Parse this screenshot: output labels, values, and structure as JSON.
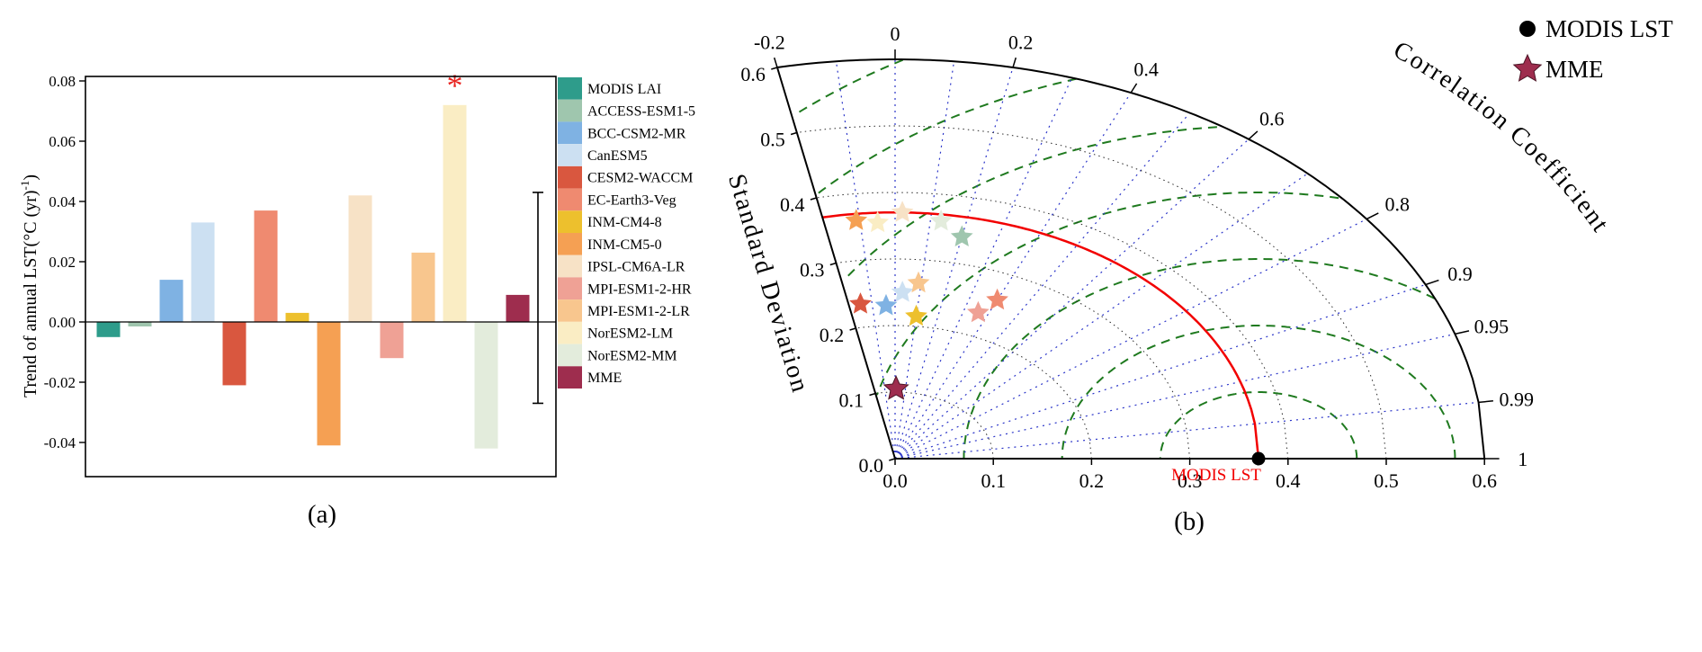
{
  "figure": {
    "caption_a": "(a)",
    "caption_b": "(b)"
  },
  "chart_data": [
    {
      "type": "bar",
      "panel": "a",
      "ylabel": "Trend of annual LST(°C (yr)⁻¹)",
      "ylabel_parts": [
        "Trend of annual LST(°C (yr)",
        "-1",
        ")"
      ],
      "ylim": [
        -0.052,
        0.082
      ],
      "yticks": [
        0.08,
        0.06,
        0.04,
        0.02,
        0,
        -0.02,
        -0.04
      ],
      "categories": [
        "MODIS LAI",
        "ACCESS-ESM1-5",
        "BCC-CSM2-MR",
        "CanESM5",
        "CESM2-WACCM",
        "EC-Earth3-Veg",
        "INM-CM4-8",
        "INM-CM5-0",
        "IPSL-CM6A-LR",
        "MPI-ESM1-2-HR",
        "MPI-ESM1-2-LR",
        "NorESM2-LM",
        "NorESM2-MM",
        "MME"
      ],
      "values": [
        -0.005,
        -0.0015,
        0.014,
        0.033,
        -0.021,
        0.037,
        0.003,
        -0.041,
        0.042,
        -0.012,
        0.023,
        0.072,
        -0.042,
        0.009
      ],
      "colors": [
        "#2e9c8b",
        "#9fc6ae",
        "#7fb2e3",
        "#cce0f2",
        "#d9573f",
        "#ef8a70",
        "#edc02d",
        "#f5a053",
        "#f7e2c6",
        "#efa195",
        "#f8c68e",
        "#faedc4",
        "#e3ecdc",
        "#9e2d4e"
      ],
      "significant_model": "NorESM2-LM",
      "significance_marker": "*",
      "significance_color": "#e82420",
      "error_bar": {
        "top": 0.043,
        "bottom": -0.027
      }
    },
    {
      "type": "taylor",
      "panel": "b",
      "axis_labels": {
        "radial": "Standard Deviation",
        "angular": "Correlation Coefficient"
      },
      "std_max": 0.6,
      "corr_min": -0.2,
      "std_ticks": [
        0,
        0.1,
        0.2,
        0.3,
        0.4,
        0.5,
        0.6
      ],
      "std_arcs": [
        0.1,
        0.2,
        0.3,
        0.4,
        0.5
      ],
      "corr_ticks": [
        {
          "v": -0.2,
          "label": "-0.2"
        },
        {
          "v": 0,
          "label": "0"
        },
        {
          "v": 0.2,
          "label": "0.2"
        },
        {
          "v": 0.4,
          "label": "0.4"
        },
        {
          "v": 0.6,
          "label": "0.6"
        },
        {
          "v": 0.8,
          "label": "0.8"
        },
        {
          "v": 0.9,
          "label": "0.9"
        },
        {
          "v": 0.95,
          "label": "0.95"
        },
        {
          "v": 0.99,
          "label": "0.99"
        },
        {
          "v": 1,
          "label": "1"
        }
      ],
      "corr_rays": [
        -0.2,
        -0.1,
        0,
        0.1,
        0.2,
        0.3,
        0.4,
        0.5,
        0.6,
        0.7,
        0.8,
        0.9,
        0.95,
        0.99
      ],
      "rmsd_contours": [
        0.1,
        0.2,
        0.3,
        0.4,
        0.5,
        0.6,
        0.7
      ],
      "reference": {
        "label": "MODIS LST",
        "std": 0.37,
        "corr": 1,
        "label_color": "#f20000"
      },
      "colors": {
        "ray": "#2b35c9",
        "rmsd": "#1f7a1f",
        "reference_arc": "#f20000",
        "boundary": "#000000"
      },
      "points": [
        {
          "name": "IPSL-CM6A-LR",
          "std": 0.37,
          "corr": 0.02,
          "color": "#f7e2c6"
        },
        {
          "name": "NorESM2-LM",
          "std": 0.355,
          "corr": -0.05,
          "color": "#faedc4"
        },
        {
          "name": "NorESM2-MM",
          "std": 0.36,
          "corr": 0.13,
          "color": "#e3ecdc"
        },
        {
          "name": "CanESM5",
          "std": 0.25,
          "corr": 0.03,
          "color": "#cce0f2"
        },
        {
          "name": "MPI-ESM1-2-LR",
          "std": 0.265,
          "corr": 0.09,
          "color": "#f8c68e"
        },
        {
          "name": "ACCESS-ESM1-5",
          "std": 0.34,
          "corr": 0.2,
          "color": "#9fc6ae"
        },
        {
          "name": "MPI-ESM1-2-HR",
          "std": 0.235,
          "corr": 0.36,
          "color": "#efa195"
        },
        {
          "name": "INM-CM4-8",
          "std": 0.215,
          "corr": 0.1,
          "color": "#edc02d"
        },
        {
          "name": "INM-CM5-0",
          "std": 0.36,
          "corr": -0.11,
          "color": "#f5a053"
        },
        {
          "name": "BCC-CSM2-MR",
          "std": 0.23,
          "corr": -0.04,
          "color": "#7fb2e3"
        },
        {
          "name": "EC-Earth3-Veg",
          "std": 0.26,
          "corr": 0.4,
          "color": "#ef8a70"
        },
        {
          "name": "CESM2-WACCM",
          "std": 0.235,
          "corr": -0.15,
          "color": "#d9573f"
        },
        {
          "name": "MME",
          "std": 0.105,
          "corr": 0.01,
          "color": "#9e2d4e"
        }
      ],
      "legend": [
        {
          "label": "MODIS LST",
          "marker": "circle",
          "color": "#000000"
        },
        {
          "label": "MME",
          "marker": "star",
          "color": "#9e2d4e"
        }
      ]
    }
  ]
}
